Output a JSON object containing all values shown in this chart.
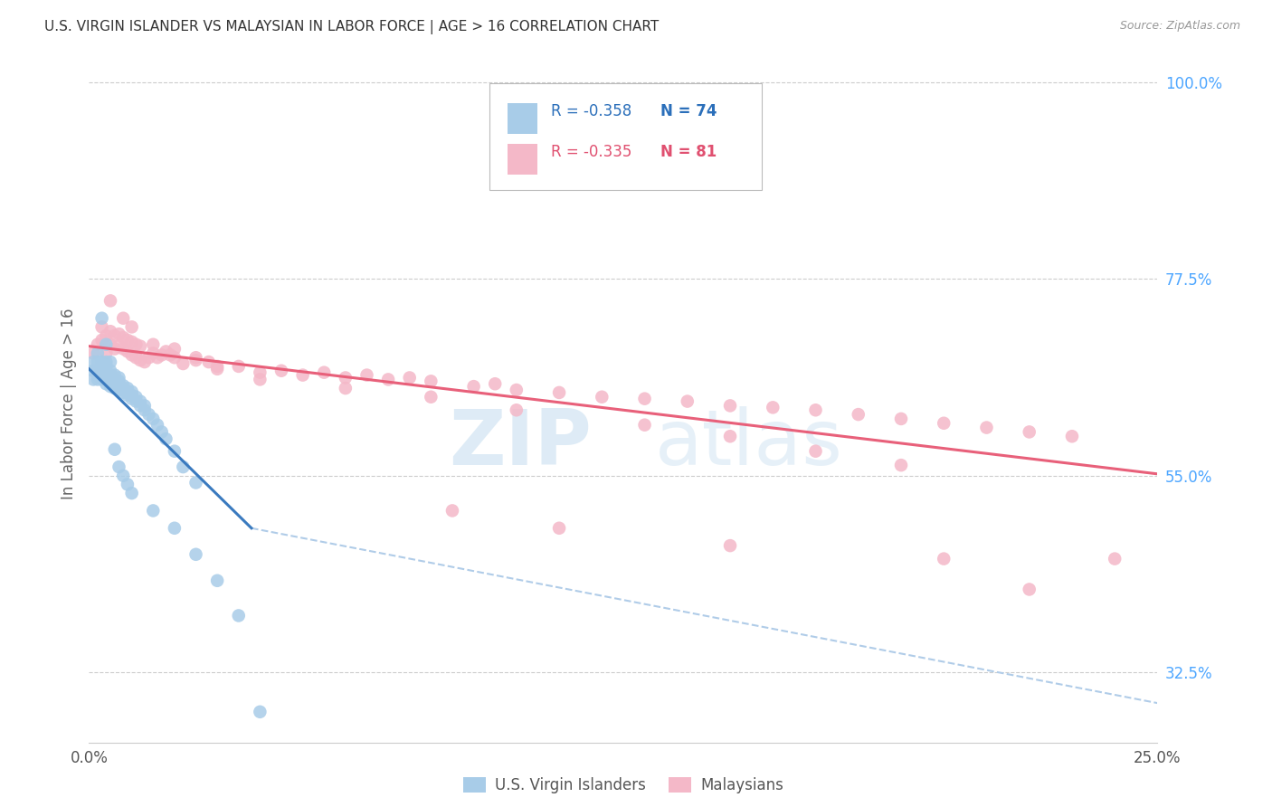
{
  "title": "U.S. VIRGIN ISLANDER VS MALAYSIAN IN LABOR FORCE | AGE > 16 CORRELATION CHART",
  "source": "Source: ZipAtlas.com",
  "ylabel": "In Labor Force | Age > 16",
  "ylabel_right_labels": [
    "100.0%",
    "77.5%",
    "55.0%",
    "32.5%"
  ],
  "ylabel_right_values": [
    1.0,
    0.775,
    0.55,
    0.325
  ],
  "legend_blue_r": "-0.358",
  "legend_blue_n": "74",
  "legend_pink_r": "-0.335",
  "legend_pink_n": "81",
  "legend_label_blue": "U.S. Virgin Islanders",
  "legend_label_pink": "Malaysians",
  "watermark_zip": "ZIP",
  "watermark_atlas": "atlas",
  "blue_color": "#a8cce8",
  "pink_color": "#f4b8c8",
  "blue_line_color": "#3a7abf",
  "pink_line_color": "#e8607a",
  "dashed_line_color": "#b0cce8",
  "x_min": 0.0,
  "x_max": 0.25,
  "y_min": 0.245,
  "y_max": 1.02,
  "blue_scatter_x": [
    0.001,
    0.001,
    0.001,
    0.002,
    0.002,
    0.002,
    0.002,
    0.002,
    0.003,
    0.003,
    0.003,
    0.003,
    0.003,
    0.003,
    0.004,
    0.004,
    0.004,
    0.004,
    0.004,
    0.004,
    0.004,
    0.005,
    0.005,
    0.005,
    0.005,
    0.005,
    0.005,
    0.006,
    0.006,
    0.006,
    0.006,
    0.006,
    0.007,
    0.007,
    0.007,
    0.007,
    0.007,
    0.008,
    0.008,
    0.008,
    0.009,
    0.009,
    0.009,
    0.01,
    0.01,
    0.01,
    0.011,
    0.011,
    0.012,
    0.012,
    0.013,
    0.013,
    0.014,
    0.015,
    0.016,
    0.017,
    0.018,
    0.02,
    0.022,
    0.025,
    0.003,
    0.004,
    0.005,
    0.006,
    0.007,
    0.008,
    0.009,
    0.01,
    0.015,
    0.02,
    0.025,
    0.03,
    0.035,
    0.04
  ],
  "blue_scatter_y": [
    0.66,
    0.67,
    0.68,
    0.66,
    0.665,
    0.67,
    0.68,
    0.69,
    0.66,
    0.665,
    0.668,
    0.672,
    0.675,
    0.68,
    0.655,
    0.66,
    0.663,
    0.668,
    0.672,
    0.676,
    0.68,
    0.652,
    0.655,
    0.658,
    0.661,
    0.665,
    0.67,
    0.65,
    0.653,
    0.656,
    0.66,
    0.665,
    0.648,
    0.651,
    0.654,
    0.658,
    0.662,
    0.645,
    0.649,
    0.653,
    0.642,
    0.646,
    0.65,
    0.638,
    0.642,
    0.646,
    0.635,
    0.64,
    0.63,
    0.635,
    0.625,
    0.63,
    0.62,
    0.615,
    0.608,
    0.6,
    0.592,
    0.578,
    0.56,
    0.542,
    0.73,
    0.7,
    0.68,
    0.58,
    0.56,
    0.55,
    0.54,
    0.53,
    0.51,
    0.49,
    0.46,
    0.43,
    0.39,
    0.28
  ],
  "pink_scatter_x": [
    0.001,
    0.002,
    0.003,
    0.003,
    0.004,
    0.004,
    0.005,
    0.005,
    0.006,
    0.006,
    0.007,
    0.007,
    0.008,
    0.008,
    0.009,
    0.009,
    0.01,
    0.01,
    0.011,
    0.011,
    0.012,
    0.012,
    0.013,
    0.014,
    0.015,
    0.016,
    0.017,
    0.018,
    0.019,
    0.02,
    0.022,
    0.025,
    0.028,
    0.03,
    0.035,
    0.04,
    0.045,
    0.05,
    0.055,
    0.06,
    0.065,
    0.07,
    0.075,
    0.08,
    0.09,
    0.095,
    0.1,
    0.11,
    0.12,
    0.13,
    0.14,
    0.15,
    0.16,
    0.17,
    0.18,
    0.19,
    0.2,
    0.21,
    0.22,
    0.23,
    0.005,
    0.008,
    0.01,
    0.015,
    0.02,
    0.025,
    0.03,
    0.04,
    0.06,
    0.08,
    0.1,
    0.13,
    0.15,
    0.17,
    0.19,
    0.085,
    0.11,
    0.24,
    0.15,
    0.2,
    0.22
  ],
  "pink_scatter_y": [
    0.69,
    0.7,
    0.705,
    0.72,
    0.69,
    0.71,
    0.7,
    0.715,
    0.695,
    0.71,
    0.698,
    0.712,
    0.695,
    0.708,
    0.692,
    0.705,
    0.688,
    0.703,
    0.685,
    0.7,
    0.682,
    0.698,
    0.68,
    0.685,
    0.69,
    0.685,
    0.688,
    0.692,
    0.688,
    0.685,
    0.678,
    0.682,
    0.68,
    0.672,
    0.675,
    0.668,
    0.67,
    0.665,
    0.668,
    0.662,
    0.665,
    0.66,
    0.662,
    0.658,
    0.652,
    0.655,
    0.648,
    0.645,
    0.64,
    0.638,
    0.635,
    0.63,
    0.628,
    0.625,
    0.62,
    0.615,
    0.61,
    0.605,
    0.6,
    0.595,
    0.75,
    0.73,
    0.72,
    0.7,
    0.695,
    0.685,
    0.675,
    0.66,
    0.65,
    0.64,
    0.625,
    0.608,
    0.595,
    0.578,
    0.562,
    0.51,
    0.49,
    0.455,
    0.47,
    0.455,
    0.42
  ],
  "blue_trendline_x": [
    0.0,
    0.038
  ],
  "blue_trendline_y": [
    0.672,
    0.49
  ],
  "pink_trendline_x": [
    0.0,
    0.25
  ],
  "pink_trendline_y": [
    0.698,
    0.552
  ],
  "dashed_trendline_x": [
    0.038,
    0.25
  ],
  "dashed_trendline_y": [
    0.49,
    0.29
  ]
}
